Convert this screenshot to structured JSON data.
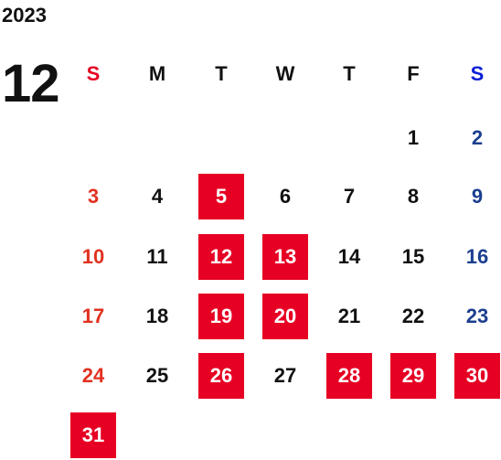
{
  "calendar": {
    "year": "2023",
    "month": "12",
    "weekdays": [
      "S",
      "M",
      "T",
      "W",
      "T",
      "F",
      "S"
    ],
    "weeks": [
      [
        "",
        "",
        "",
        "",
        "",
        "1",
        "2"
      ],
      [
        "3",
        "4",
        "5",
        "6",
        "7",
        "8",
        "9"
      ],
      [
        "10",
        "11",
        "12",
        "13",
        "14",
        "15",
        "16"
      ],
      [
        "17",
        "18",
        "19",
        "20",
        "21",
        "22",
        "23"
      ],
      [
        "24",
        "25",
        "26",
        "27",
        "28",
        "29",
        "30"
      ],
      [
        "31",
        "",
        "",
        "",
        "",
        "",
        ""
      ]
    ],
    "highlighted_days": [
      "5",
      "12",
      "13",
      "19",
      "20",
      "26",
      "28",
      "29",
      "30",
      "31"
    ]
  },
  "colors": {
    "highlight_bg": "#e60023",
    "highlight_text": "#ffffff",
    "sunday_header": "#e60023",
    "saturday_header": "#0a1fd6",
    "sunday_day": "#e13120",
    "saturday_day": "#1b3f8f",
    "default_text": "#111111"
  }
}
